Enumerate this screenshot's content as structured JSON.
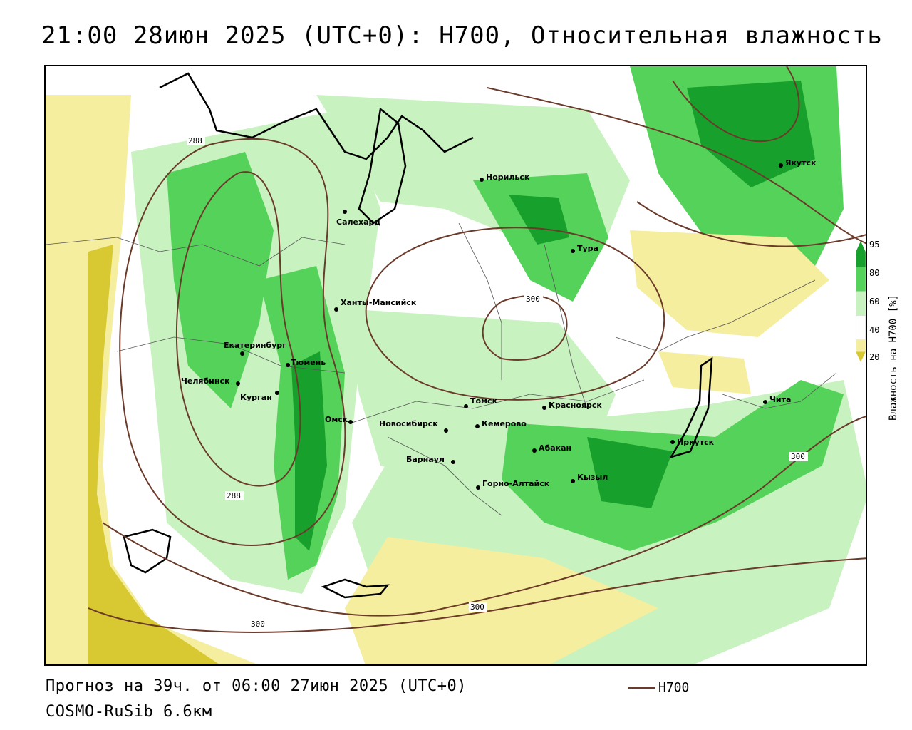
{
  "title": "21:00 28июн 2025 (UTC+0): H700, Относительная влажность",
  "footer": {
    "line1": "Прогноз на 39ч. от 06:00 27июн 2025 (UTC+0)",
    "line2": "COSMO-RuSib 6.6км",
    "line_legend_label": "H700"
  },
  "legend": {
    "title": "Влажность на H700 [%]",
    "ticks": [
      "95",
      "80",
      "60",
      "40",
      "20"
    ],
    "colors": {
      "very_dry": "#d8c832",
      "dry": "#f5ee9e",
      "moist": "#c8f2c0",
      "humid": "#55d25a",
      "very_humid": "#18a02c",
      "contour": "#6b3a2a"
    }
  },
  "cities": [
    {
      "name": "Якутск"
    },
    {
      "name": "Норильск"
    },
    {
      "name": "Салехард"
    },
    {
      "name": "Тура"
    },
    {
      "name": "Ханты-Мансийск"
    },
    {
      "name": "Екатеринбург"
    },
    {
      "name": "Тюмень"
    },
    {
      "name": "Челябинск"
    },
    {
      "name": "Курган"
    },
    {
      "name": "Омск"
    },
    {
      "name": "Новосибирск"
    },
    {
      "name": "Томск"
    },
    {
      "name": "Кемерово"
    },
    {
      "name": "Красноярск"
    },
    {
      "name": "Абакан"
    },
    {
      "name": "Барнаул"
    },
    {
      "name": "Горно-Алтайск"
    },
    {
      "name": "Кызыл"
    },
    {
      "name": "Иркутск"
    },
    {
      "name": "Чита"
    }
  ],
  "contour_labels": [
    "288",
    "288",
    "300",
    "300",
    "300",
    "300"
  ]
}
